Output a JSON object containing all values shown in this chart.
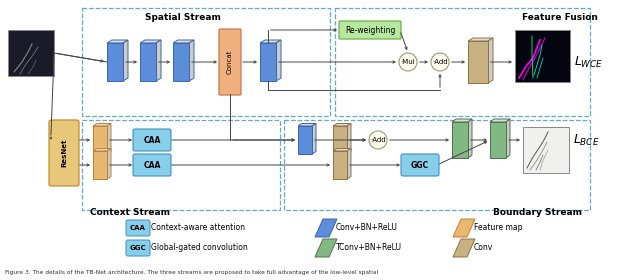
{
  "background_color": "#ffffff",
  "spatial_stream_label": "Spatial Stream",
  "context_stream_label": "Context Stream",
  "feature_fusion_label": "Feature Fusion",
  "boundary_stream_label": "Boundary Stream",
  "lwce_label": "$L_{WCE}$",
  "lbce_label": "$L_{BCE}$",
  "colors": {
    "blue_para": "#5B8DD9",
    "blue_para_edge": "#3A65AA",
    "blue_para_light": "#8BB8E8",
    "green_para": "#82B882",
    "green_para_edge": "#507050",
    "green_para_light": "#A8CCA8",
    "orange_para": "#E8B870",
    "orange_para_edge": "#C08030",
    "tan_para": "#C8B080",
    "tan_para_edge": "#907040",
    "tan_para_light": "#DDD0A0",
    "resnet_fill": "#E8C878",
    "resnet_edge": "#C09030",
    "caa_fill": "#87CEEB",
    "caa_edge": "#4090BB",
    "ggc_fill": "#87CEEB",
    "ggc_edge": "#4090BB",
    "concat_fill": "#F0B080",
    "concat_edge": "#C07040",
    "reweight_fill": "#B8E8A0",
    "reweight_edge": "#60A840",
    "circle_fill": "#FFFFF0",
    "circle_edge": "#999977",
    "dashed_box": "#60A8D0",
    "arrow": "#444444",
    "img_bg": "#101020",
    "bnd_img_bg": "#F0F0F0"
  },
  "legend": {
    "caa_text": "Context-aware attention",
    "ggc_text": "Global-gated convolution",
    "conv_bn_text": "Conv+BN+ReLU",
    "tconv_bn_text": "TConv+BN+ReLU",
    "feature_map_text": "Feature map",
    "conv_text": "Conv"
  },
  "caption": "Figure 3. The details of the TB-Net architecture. The three streams are proposed to take full advantage of the low-level spatial"
}
